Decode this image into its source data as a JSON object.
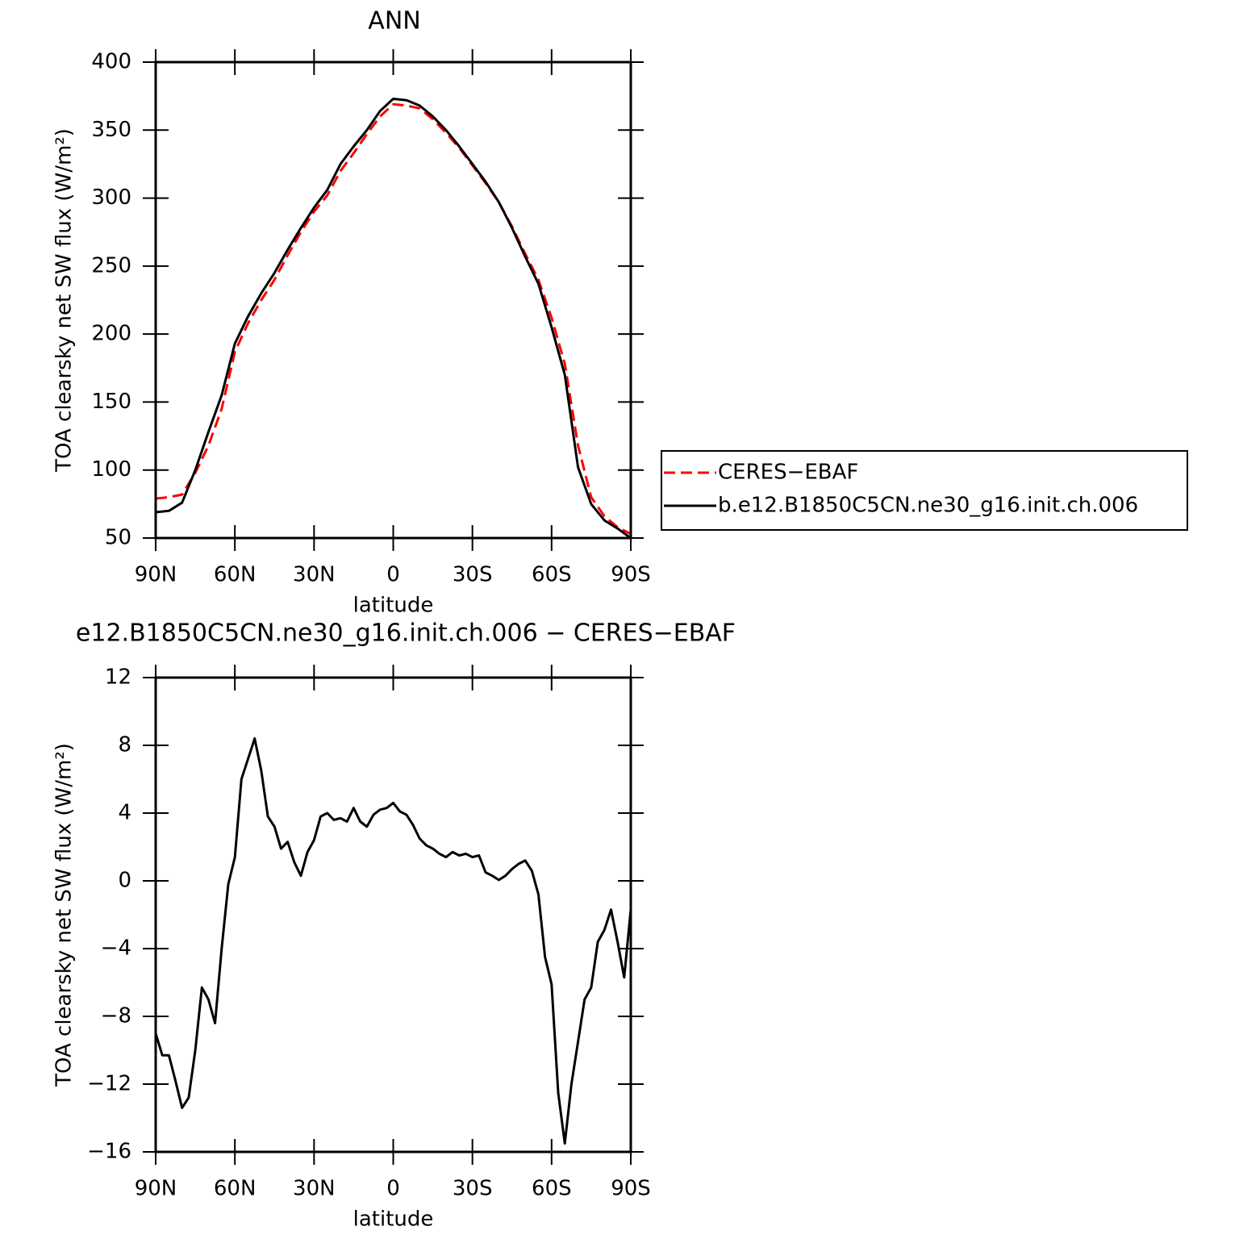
{
  "chart_data": [
    {
      "type": "line",
      "title": "ANN",
      "xlabel": "latitude",
      "ylabel": "TOA clearsky net SW flux (W/m²)",
      "x": [
        90,
        85,
        80,
        75,
        70,
        65,
        60,
        55,
        50,
        45,
        40,
        35,
        30,
        25,
        20,
        15,
        10,
        5,
        0,
        -5,
        -10,
        -15,
        -20,
        -25,
        -30,
        -35,
        -40,
        -45,
        -50,
        -55,
        -60,
        -65,
        -70,
        -75,
        -80,
        -85,
        -90
      ],
      "series": [
        {
          "name": "CERES−EBAF",
          "color": "#ff0000",
          "dashed": true,
          "values": [
            79,
            80,
            82,
            98,
            118,
            145,
            187,
            208,
            225,
            240,
            258,
            275,
            290,
            302,
            320,
            333,
            347,
            360,
            369,
            368,
            366,
            358,
            348,
            337,
            324,
            311,
            297,
            279,
            259,
            240,
            212,
            178,
            118,
            80,
            66,
            58,
            53
          ]
        },
        {
          "name": "b.e12.B1850C5CN.ne30_g16.init.ch.006",
          "color": "#000000",
          "dashed": false,
          "values": [
            69,
            70,
            76,
            100,
            128,
            155,
            193,
            213,
            230,
            245,
            262,
            278,
            293,
            306,
            325,
            338,
            350,
            364,
            373,
            372,
            368,
            360,
            350,
            338,
            325,
            312,
            297,
            278,
            257,
            237,
            205,
            170,
            102,
            75,
            63,
            57,
            50
          ]
        }
      ],
      "xlim": [
        90,
        -90
      ],
      "xticks": [
        {
          "value": 90,
          "label": "90N"
        },
        {
          "value": 60,
          "label": "60N"
        },
        {
          "value": 30,
          "label": "30N"
        },
        0,
        {
          "value": -30,
          "label": "30S"
        },
        {
          "value": -60,
          "label": "60S"
        },
        {
          "value": -90,
          "label": "90S"
        }
      ],
      "ylim": [
        50,
        400
      ],
      "yticks": [
        50,
        100,
        150,
        200,
        250,
        300,
        350,
        400
      ],
      "legend": "right"
    },
    {
      "type": "line",
      "title": "e12.B1850C5CN.ne30_g16.init.ch.006 − CERES−EBAF",
      "xlabel": "latitude",
      "ylabel": "TOA clearsky net SW flux (W/m²)",
      "x": [
        90,
        87.5,
        85,
        82.5,
        80,
        77.5,
        75,
        72.5,
        70,
        67.5,
        65,
        62.5,
        60,
        57.5,
        55,
        52.5,
        50,
        47.5,
        45,
        42.5,
        40,
        37.5,
        35,
        32.5,
        30,
        27.5,
        25,
        22.5,
        20,
        17.5,
        15,
        12.5,
        10,
        7.5,
        5,
        2.5,
        0,
        -2.5,
        -5,
        -7.5,
        -10,
        -12.5,
        -15,
        -17.5,
        -20,
        -22.5,
        -25,
        -27.5,
        -30,
        -32.5,
        -35,
        -37.5,
        -40,
        -42.5,
        -45,
        -47.5,
        -50,
        -52.5,
        -55,
        -57.5,
        -60,
        -62.5,
        -65,
        -67.5,
        -70,
        -72.5,
        -75,
        -77.5,
        -80,
        -82.5,
        -85,
        -87.5,
        -90
      ],
      "series": [
        {
          "color": "#000000",
          "dashed": false,
          "values": [
            -9,
            -10.3,
            -10.3,
            -11.8,
            -13.4,
            -12.8,
            -10,
            -6.3,
            -7,
            -8.4,
            -4,
            -0.2,
            1.4,
            6,
            7.2,
            8.4,
            6.5,
            3.8,
            3.2,
            1.9,
            2.3,
            1.1,
            0.3,
            1.7,
            2.4,
            3.8,
            4,
            3.6,
            3.7,
            3.5,
            4.3,
            3.5,
            3.2,
            3.9,
            4.2,
            4.3,
            4.6,
            4.1,
            3.9,
            3.3,
            2.5,
            2.1,
            1.9,
            1.6,
            1.4,
            1.7,
            1.5,
            1.6,
            1.4,
            1.5,
            0.5,
            0.3,
            0.05,
            0.3,
            0.7,
            1,
            1.2,
            0.6,
            -0.8,
            -4.5,
            -6.1,
            -12.5,
            -15.5,
            -12,
            -9.5,
            -7,
            -6.3,
            -3.6,
            -2.9,
            -1.7,
            -3.6,
            -5.7,
            -1.7
          ]
        }
      ],
      "xlim": [
        90,
        -90
      ],
      "xticks": [
        {
          "value": 90,
          "label": "90N"
        },
        {
          "value": 60,
          "label": "60N"
        },
        {
          "value": 30,
          "label": "30N"
        },
        0,
        {
          "value": -30,
          "label": "30S"
        },
        {
          "value": -60,
          "label": "60S"
        },
        {
          "value": -90,
          "label": "90S"
        }
      ],
      "ylim": [
        -16,
        12
      ],
      "yticks": [
        {
          "value": -16,
          "label": "−16"
        },
        {
          "value": -12,
          "label": "−12"
        },
        {
          "value": -8,
          "label": "−8"
        },
        {
          "value": -4,
          "label": "−4"
        },
        0,
        4,
        8,
        12
      ]
    }
  ]
}
